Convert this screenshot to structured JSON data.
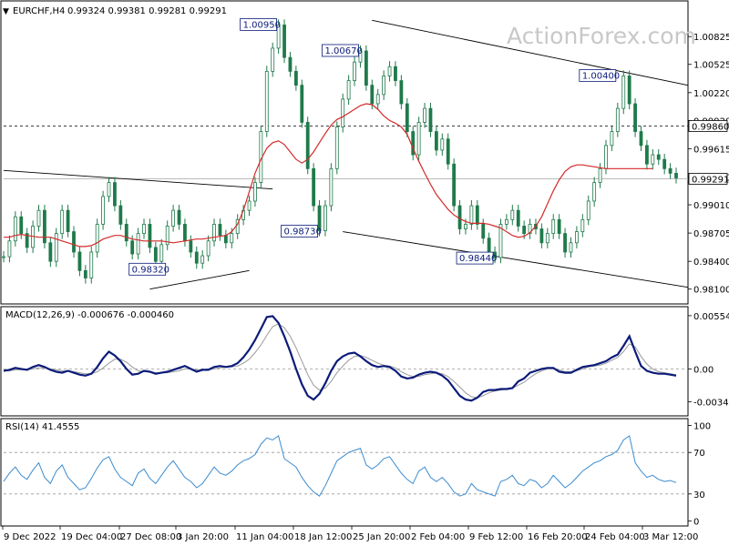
{
  "watermark": "ActionForex.com",
  "colors": {
    "candle": "#1f7a4a",
    "ma": "#d42a2a",
    "macd": "#0b1b7a",
    "signal": "#9a9a9a",
    "rsi": "#3c8ccf",
    "label_text": "#0b1b7a",
    "channel": "#000000"
  },
  "chart_data": [
    {
      "type": "candlestick",
      "panel": "price",
      "title": "EURCHF,H4",
      "ohlc_text": "0.99324 0.99381 0.99281 0.99291",
      "ylim": [
        0.9795,
        1.012
      ],
      "y_ticks": [
        "1.00825",
        "1.00525",
        "1.00220",
        "0.99920",
        "0.99615",
        "0.99310",
        "0.99010",
        "0.98705",
        "0.98400",
        "0.98100"
      ],
      "current_price_label": "0.99291",
      "current_price": 0.99291,
      "level_label": "0.99860",
      "level_price": 0.9986,
      "peak_labels": [
        {
          "text": "1.00950",
          "value": 1.0095
        },
        {
          "text": "1.00670",
          "value": 1.0067
        },
        {
          "text": "1.00400",
          "value": 1.004
        },
        {
          "text": "0.98730",
          "value": 0.9873
        },
        {
          "text": "0.98440",
          "value": 0.9844
        },
        {
          "text": "0.98320",
          "value": 0.9832
        }
      ],
      "series": [
        {
          "name": "price",
          "values": [
            0.9845,
            0.9862,
            0.9888,
            0.987,
            0.9855,
            0.9878,
            0.9895,
            0.986,
            0.984,
            0.987,
            0.9895,
            0.9872,
            0.985,
            0.983,
            0.9822,
            0.985,
            0.988,
            0.991,
            0.9925,
            0.99,
            0.988,
            0.9862,
            0.9848,
            0.987,
            0.988,
            0.9855,
            0.984,
            0.9858,
            0.9878,
            0.9895,
            0.988,
            0.9862,
            0.985,
            0.9838,
            0.9846,
            0.9862,
            0.988,
            0.9868,
            0.986,
            0.987,
            0.9885,
            0.9895,
            0.9905,
            0.9925,
            0.998,
            1.0045,
            1.007,
            1.0095,
            1.006,
            1.0045,
            1.003,
            0.999,
            0.994,
            0.99,
            0.9873,
            0.99,
            0.994,
            0.9985,
            1.0015,
            1.0035,
            1.0055,
            1.0067,
            1.003,
            1.001,
            1.002,
            1.004,
            1.005,
            1.0035,
            1.001,
            0.998,
            0.9955,
            0.999,
            1.0005,
            0.998,
            0.996,
            0.9972,
            0.9945,
            0.99,
            0.9875,
            0.988,
            0.99,
            0.988,
            0.9865,
            0.985,
            0.9844,
            0.988,
            0.9885,
            0.9895,
            0.9878,
            0.987,
            0.988,
            0.9875,
            0.986,
            0.987,
            0.9885,
            0.987,
            0.985,
            0.986,
            0.9872,
            0.9885,
            0.9905,
            0.9925,
            0.994,
            0.9965,
            0.998,
            1.0005,
            1.004,
            1.001,
            0.998,
            0.9965,
            0.9945,
            0.9955,
            0.995,
            0.994,
            0.9935,
            0.993
          ]
        },
        {
          "name": "ma",
          "values": [
            0.9866,
            0.9866,
            0.9868,
            0.9869,
            0.9868,
            0.9867,
            0.9866,
            0.9866,
            0.9866,
            0.9864,
            0.9862,
            0.986,
            0.9858,
            0.9856,
            0.9856,
            0.9857,
            0.986,
            0.9864,
            0.9866,
            0.9868,
            0.9868,
            0.9866,
            0.9864,
            0.9863,
            0.9862,
            0.9862,
            0.9862,
            0.9862,
            0.9861,
            0.986,
            0.9861,
            0.9862,
            0.9863,
            0.9864,
            0.9864,
            0.9865,
            0.9866,
            0.9867,
            0.9868,
            0.9872,
            0.988,
            0.9895,
            0.9915,
            0.9935,
            0.995,
            0.9962,
            0.9968,
            0.997,
            0.9966,
            0.9958,
            0.995,
            0.9946,
            0.995,
            0.9958,
            0.9968,
            0.9978,
            0.9987,
            0.9993,
            0.9996,
            1.0,
            1.0004,
            1.0008,
            1.001,
            1.0009,
            1.0004,
            0.9997,
            0.9992,
            0.9989,
            0.9985,
            0.9977,
            0.9962,
            0.9948,
            0.9935,
            0.9923,
            0.9912,
            0.9904,
            0.9896,
            0.989,
            0.9886,
            0.9883,
            0.9881,
            0.9881,
            0.9881,
            0.988,
            0.9878,
            0.9876,
            0.9872,
            0.9868,
            0.9866,
            0.9867,
            0.9871,
            0.9878,
            0.9888,
            0.9902,
            0.9916,
            0.9928,
            0.9937,
            0.9942,
            0.9944,
            0.9944,
            0.9943,
            0.9942,
            0.9941,
            0.994,
            0.994,
            0.994,
            0.994,
            0.994,
            0.994,
            0.994,
            0.994,
            0.994
          ]
        }
      ]
    },
    {
      "type": "line",
      "panel": "macd",
      "title": "MACD(12,26,9) -0.000676 -0.000460",
      "ylim": [
        -0.0048,
        0.0062
      ],
      "y_ticks": [
        "0.005546",
        "0.00",
        "-0.003423"
      ],
      "series": [
        {
          "name": "macd",
          "values": [
            -0.0002,
            -0.0001,
            0.0001,
            0.0,
            -0.0001,
            0.0002,
            0.0004,
            0.0002,
            -0.0001,
            -0.0003,
            -0.0004,
            -0.0002,
            -0.0004,
            -0.0006,
            -0.0007,
            -0.0005,
            0.0002,
            0.0011,
            0.0018,
            0.0014,
            0.0008,
            0.0,
            -0.0006,
            -0.0005,
            -0.0002,
            -0.0003,
            -0.0005,
            -0.0004,
            -0.0003,
            -0.0001,
            0.0001,
            0.0003,
            0.0,
            -0.0003,
            -0.0001,
            -0.0001,
            0.0002,
            0.0003,
            0.0002,
            0.0003,
            0.0006,
            0.0012,
            0.002,
            0.003,
            0.0042,
            0.0054,
            0.0055,
            0.0048,
            0.0034,
            0.0018,
            0.0,
            -0.0016,
            -0.0028,
            -0.0032,
            -0.0026,
            -0.0015,
            -0.0002,
            0.0008,
            0.0013,
            0.0016,
            0.0017,
            0.0013,
            0.0008,
            0.0004,
            0.0002,
            0.0003,
            0.0002,
            -0.0002,
            -0.0008,
            -0.001,
            -0.0009,
            -0.0006,
            -0.0004,
            -0.0003,
            -0.0004,
            -0.0007,
            -0.0012,
            -0.002,
            -0.0028,
            -0.0032,
            -0.0033,
            -0.003,
            -0.0024,
            -0.0022,
            -0.0022,
            -0.0021,
            -0.0021,
            -0.002,
            -0.0013,
            -0.001,
            -0.0004,
            -0.0002,
            0.0,
            0.0001,
            0.0001,
            -0.0003,
            -0.0004,
            -0.0004,
            -0.0001,
            0.0002,
            0.0003,
            0.0004,
            0.0006,
            0.0008,
            0.0012,
            0.0015,
            0.0024,
            0.0034,
            0.0018,
            0.0003,
            -0.0002,
            -0.0004,
            -0.0005,
            -0.0005,
            -0.0006,
            -0.0007
          ]
        },
        {
          "name": "signal",
          "values": [
            -0.0002,
            -0.0002,
            -0.0001,
            -0.0001,
            -0.0001,
            0.0,
            0.0001,
            0.0001,
            0.0,
            -0.0001,
            -0.0002,
            -0.0002,
            -0.0003,
            -0.0004,
            -0.0005,
            -0.0005,
            -0.0003,
            0.0001,
            0.0006,
            0.001,
            0.001,
            0.0007,
            0.0002,
            -0.0002,
            -0.0003,
            -0.0003,
            -0.0004,
            -0.0004,
            -0.0004,
            -0.0003,
            -0.0002,
            0.0,
            0.0,
            -0.0001,
            -0.0001,
            -0.0001,
            0.0,
            0.0001,
            0.0002,
            0.0002,
            0.0003,
            0.0006,
            0.001,
            0.0017,
            0.0025,
            0.0035,
            0.0044,
            0.0047,
            0.0043,
            0.0034,
            0.0022,
            0.0008,
            -0.0006,
            -0.0017,
            -0.0022,
            -0.002,
            -0.0013,
            -0.0004,
            0.0003,
            0.0009,
            0.0013,
            0.0014,
            0.0012,
            0.0009,
            0.0006,
            0.0004,
            0.0003,
            0.0001,
            -0.0003,
            -0.0006,
            -0.0008,
            -0.0008,
            -0.0006,
            -0.0005,
            -0.0004,
            -0.0005,
            -0.0008,
            -0.0013,
            -0.0019,
            -0.0025,
            -0.0029,
            -0.003,
            -0.0028,
            -0.0025,
            -0.0023,
            -0.0022,
            -0.0021,
            -0.002,
            -0.0017,
            -0.0014,
            -0.0009,
            -0.0005,
            -0.0002,
            0.0,
            0.0,
            -0.0001,
            -0.0003,
            -0.0003,
            -0.0002,
            0.0,
            0.0002,
            0.0003,
            0.0004,
            0.0006,
            0.0009,
            0.0012,
            0.0018,
            0.0026,
            0.0023,
            0.0013,
            0.0005,
            0.0,
            -0.0003,
            -0.0004,
            -0.0005,
            -0.0006
          ]
        }
      ]
    },
    {
      "type": "line",
      "panel": "rsi",
      "title": "RSI(14) 41.4555",
      "ylim": [
        0,
        100
      ],
      "y_ticks": [
        "100",
        "70",
        "30",
        "0"
      ],
      "levels": [
        70,
        30
      ],
      "series": [
        {
          "name": "rsi",
          "values": [
            42,
            50,
            56,
            48,
            44,
            53,
            60,
            46,
            40,
            52,
            58,
            46,
            40,
            34,
            36,
            45,
            55,
            63,
            66,
            54,
            46,
            42,
            38,
            50,
            54,
            45,
            40,
            48,
            56,
            62,
            54,
            46,
            42,
            36,
            40,
            48,
            56,
            50,
            48,
            52,
            58,
            62,
            64,
            68,
            78,
            84,
            82,
            86,
            64,
            60,
            56,
            46,
            38,
            32,
            28,
            38,
            50,
            62,
            66,
            70,
            72,
            74,
            58,
            54,
            58,
            64,
            66,
            58,
            50,
            44,
            40,
            52,
            56,
            46,
            42,
            46,
            40,
            32,
            28,
            30,
            40,
            34,
            32,
            30,
            28,
            42,
            44,
            48,
            40,
            38,
            44,
            42,
            36,
            40,
            48,
            42,
            36,
            40,
            46,
            52,
            56,
            60,
            62,
            66,
            68,
            72,
            82,
            86,
            60,
            52,
            46,
            48,
            44,
            42,
            43,
            41
          ]
        }
      ]
    }
  ],
  "x_axis": {
    "labels": [
      "9 Dec 2022",
      "19 Dec 04:00",
      "27 Dec 08:00",
      "3 Jan 20:00",
      "11 Jan 04:00",
      "18 Jan 12:00",
      "25 Jan 20:00",
      "2 Feb 04:00",
      "9 Feb 12:00",
      "16 Feb 20:00",
      "24 Feb 04:00",
      "3 Mar 12:00"
    ]
  }
}
